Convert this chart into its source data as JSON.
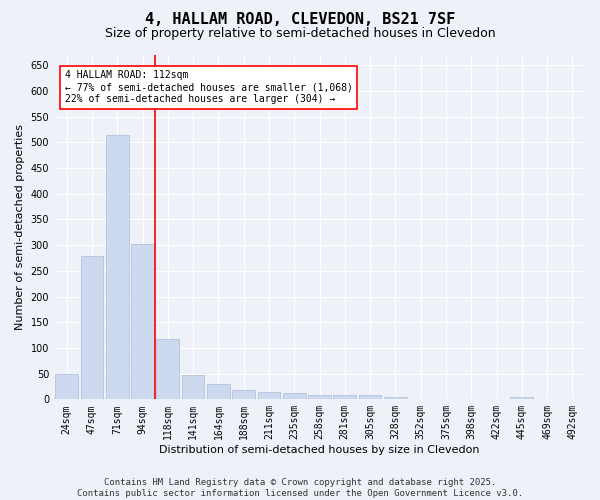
{
  "title": "4, HALLAM ROAD, CLEVEDON, BS21 7SF",
  "subtitle": "Size of property relative to semi-detached houses in Clevedon",
  "xlabel": "Distribution of semi-detached houses by size in Clevedon",
  "ylabel": "Number of semi-detached properties",
  "categories": [
    "24sqm",
    "47sqm",
    "71sqm",
    "94sqm",
    "118sqm",
    "141sqm",
    "164sqm",
    "188sqm",
    "211sqm",
    "235sqm",
    "258sqm",
    "281sqm",
    "305sqm",
    "328sqm",
    "352sqm",
    "375sqm",
    "398sqm",
    "422sqm",
    "445sqm",
    "469sqm",
    "492sqm"
  ],
  "values": [
    50,
    278,
    515,
    302,
    117,
    47,
    30,
    18,
    14,
    13,
    8,
    8,
    8,
    4,
    1,
    0,
    0,
    0,
    5,
    0,
    0
  ],
  "bar_color": "#ccd9ee",
  "bar_edge_color": "#aabbd8",
  "vline_x_index": 3.5,
  "vline_color": "red",
  "annotation_text": "4 HALLAM ROAD: 112sqm\n← 77% of semi-detached houses are smaller (1,068)\n22% of semi-detached houses are larger (304) →",
  "annotation_box_color": "white",
  "annotation_box_edge_color": "red",
  "ylim": [
    0,
    670
  ],
  "yticks": [
    0,
    50,
    100,
    150,
    200,
    250,
    300,
    350,
    400,
    450,
    500,
    550,
    600,
    650
  ],
  "footer_line1": "Contains HM Land Registry data © Crown copyright and database right 2025.",
  "footer_line2": "Contains public sector information licensed under the Open Government Licence v3.0.",
  "bg_color": "#eef2f8",
  "plot_bg_color": "#eef2f8",
  "title_fontsize": 11,
  "subtitle_fontsize": 9,
  "axis_label_fontsize": 8,
  "tick_fontsize": 7,
  "annotation_fontsize": 7,
  "footer_fontsize": 6.5
}
